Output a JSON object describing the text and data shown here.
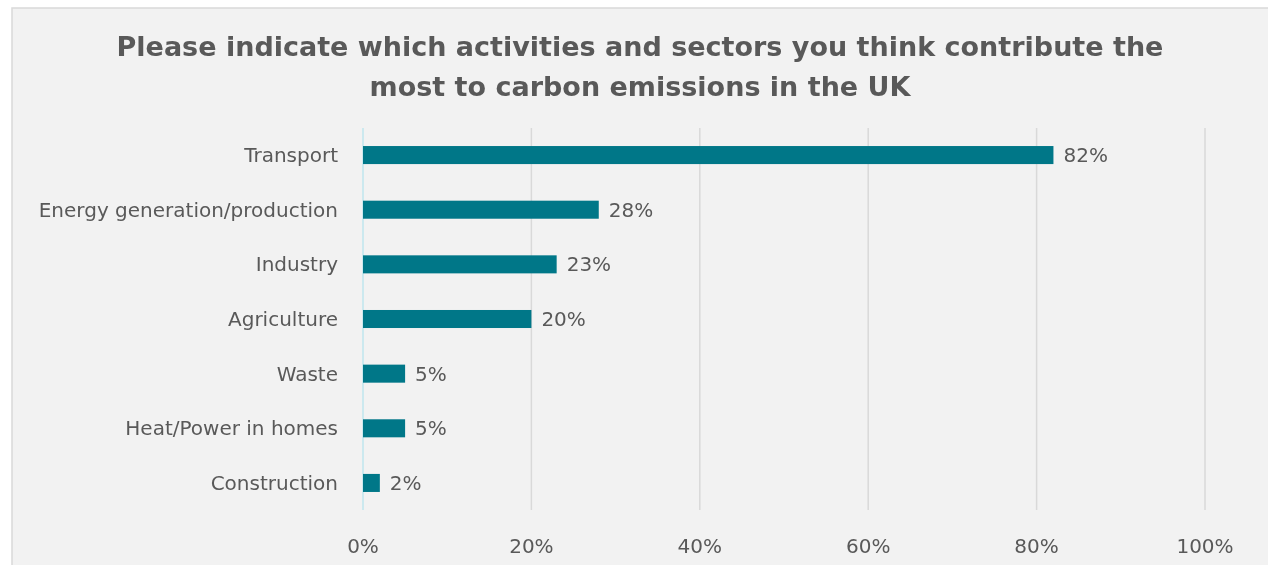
{
  "chart_data": {
    "type": "bar",
    "orientation": "horizontal",
    "title": "Please indicate which activities and sectors you think contribute the most to carbon emissions in the UK",
    "categories": [
      "Transport",
      "Energy generation/production",
      "Industry",
      "Agriculture",
      "Waste",
      "Heat/Power in homes",
      "Construction"
    ],
    "values": [
      82,
      28,
      23,
      20,
      5,
      5,
      2
    ],
    "value_labels": [
      "82%",
      "28%",
      "23%",
      "20%",
      "5%",
      "5%",
      "2%"
    ],
    "color": "#007788",
    "xlim": [
      0,
      100
    ],
    "xticks": [
      {
        "value": 0,
        "label": "0%"
      },
      {
        "value": 20,
        "label": "20%"
      },
      {
        "value": 40,
        "label": "40%"
      },
      {
        "value": 60,
        "label": "60%"
      },
      {
        "value": 80,
        "label": "80%"
      },
      {
        "value": 100,
        "label": "100%"
      }
    ],
    "grid": "x"
  }
}
